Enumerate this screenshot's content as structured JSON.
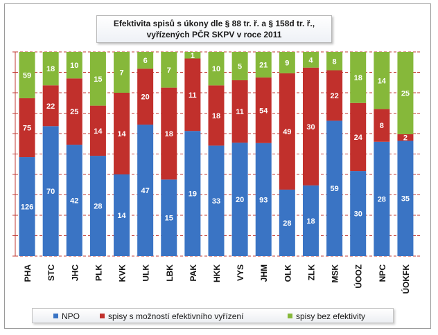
{
  "chart_data": {
    "type": "bar",
    "stacked": true,
    "title_lines": [
      "Efektivita spisů s úkony dle § 88 tr. ř. a § 158d tr. ř.,",
      "vyřízených PČR SKPV v roce 2011"
    ],
    "categories": [
      "PHA",
      "STC",
      "JHC",
      "PLK",
      "KVK",
      "ULK",
      "LBK",
      "PAK",
      "HKK",
      "VYS",
      "JHM",
      "OLK",
      "ZLK",
      "MSK",
      "ÚOOZ",
      "NPC",
      "ÚOKFK"
    ],
    "series": [
      {
        "name": "NPO",
        "color": "#3a74c4",
        "values": [
          126,
          70,
          42,
          28,
          14,
          47,
          15,
          19,
          33,
          20,
          93,
          28,
          18,
          59,
          30,
          28,
          35
        ]
      },
      {
        "name": "spisy  s možností efektivního  vyřízení",
        "color": "#c1302c",
        "values": [
          75,
          22,
          25,
          14,
          14,
          20,
          18,
          11,
          18,
          11,
          54,
          49,
          30,
          22,
          24,
          8,
          2
        ]
      },
      {
        "name": "spisy bez efektivity",
        "color": "#86b83a",
        "values": [
          59,
          18,
          10,
          15,
          7,
          6,
          7,
          1,
          10,
          5,
          21,
          9,
          4,
          8,
          18,
          14,
          25
        ]
      }
    ],
    "ylim": [
      0,
      1
    ],
    "normalized": "percent",
    "grid": true,
    "gridlines": 10,
    "legend": "bottom"
  }
}
